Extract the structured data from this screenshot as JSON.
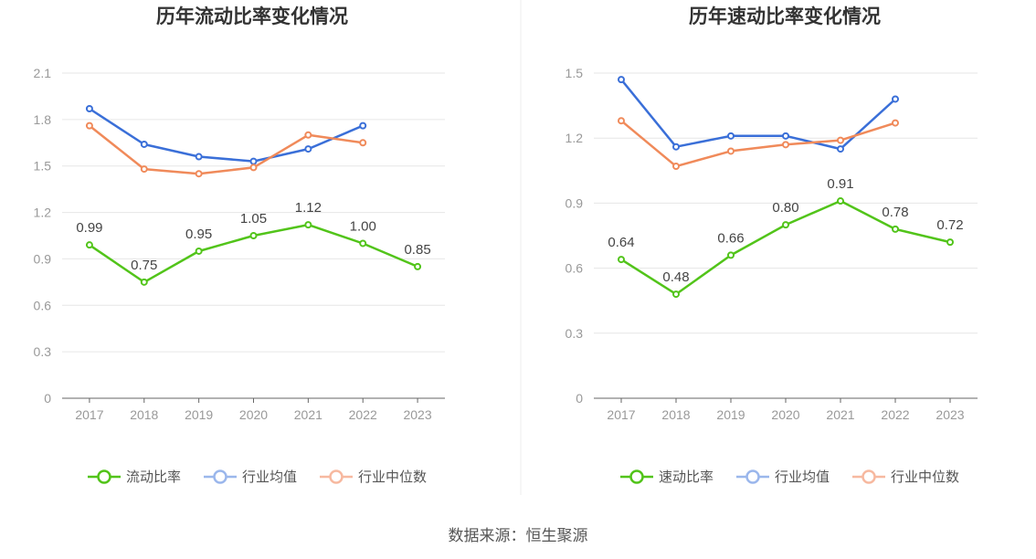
{
  "source_text": "数据来源：恒生聚源",
  "chart_data": [
    {
      "type": "line",
      "title": "历年流动比率变化情况",
      "categories": [
        "2017",
        "2018",
        "2019",
        "2020",
        "2021",
        "2022",
        "2023"
      ],
      "ylim": [
        0,
        2.1
      ],
      "yticks": [
        "0",
        "0.3",
        "0.6",
        "0.9",
        "1.2",
        "1.5",
        "1.8",
        "2.1"
      ],
      "grid": true,
      "legend": "bottom",
      "series": [
        {
          "name": "流动比率",
          "color": "#52c41a",
          "values": [
            0.99,
            0.75,
            0.95,
            1.05,
            1.12,
            1.0,
            0.85
          ],
          "labels": [
            "0.99",
            "0.75",
            "0.95",
            "1.05",
            "1.12",
            "1.00",
            "0.85"
          ]
        },
        {
          "name": "行业均值",
          "color": "#3a6fd8",
          "values": [
            1.87,
            1.64,
            1.56,
            1.53,
            1.61,
            1.76,
            null
          ]
        },
        {
          "name": "行业中位数",
          "color": "#f08a5a",
          "values": [
            1.76,
            1.48,
            1.45,
            1.49,
            1.7,
            1.65,
            null
          ]
        }
      ]
    },
    {
      "type": "line",
      "title": "历年速动比率变化情况",
      "categories": [
        "2017",
        "2018",
        "2019",
        "2020",
        "2021",
        "2022",
        "2023"
      ],
      "ylim": [
        0,
        1.5
      ],
      "yticks": [
        "0",
        "0.3",
        "0.6",
        "0.9",
        "1.2",
        "1.5"
      ],
      "grid": true,
      "legend": "bottom",
      "series": [
        {
          "name": "速动比率",
          "color": "#52c41a",
          "values": [
            0.64,
            0.48,
            0.66,
            0.8,
            0.91,
            0.78,
            0.72
          ],
          "labels": [
            "0.64",
            "0.48",
            "0.66",
            "0.80",
            "0.91",
            "0.78",
            "0.72"
          ]
        },
        {
          "name": "行业均值",
          "color": "#3a6fd8",
          "values": [
            1.47,
            1.16,
            1.21,
            1.21,
            1.15,
            1.38,
            null
          ]
        },
        {
          "name": "行业中位数",
          "color": "#f08a5a",
          "values": [
            1.28,
            1.07,
            1.14,
            1.17,
            1.19,
            1.27,
            null
          ]
        }
      ]
    }
  ]
}
